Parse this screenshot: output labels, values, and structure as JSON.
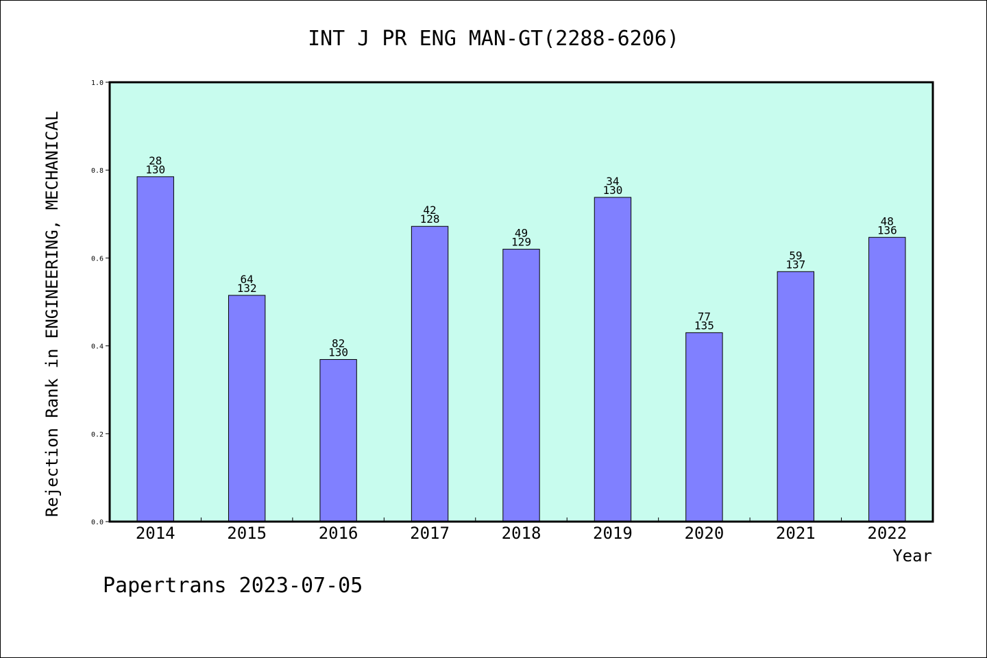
{
  "chart_data": {
    "type": "bar",
    "title": "INT J PR ENG MAN-GT(2288-6206)",
    "xlabel": "Year",
    "ylabel": "Rejection Rank in ENGINEERING, MECHANICAL",
    "ylim": [
      0,
      1.0
    ],
    "yticks": [
      "0.0",
      "0.2",
      "0.4",
      "0.6",
      "0.8",
      "1.0"
    ],
    "categories": [
      "2014",
      "2015",
      "2016",
      "2017",
      "2018",
      "2019",
      "2020",
      "2021",
      "2022"
    ],
    "values": [
      0.785,
      0.515,
      0.369,
      0.672,
      0.62,
      0.738,
      0.43,
      0.569,
      0.647
    ],
    "rank": [
      "28",
      "64",
      "82",
      "42",
      "49",
      "34",
      "77",
      "59",
      "48"
    ],
    "total": [
      "130",
      "132",
      "130",
      "128",
      "129",
      "130",
      "135",
      "137",
      "136"
    ],
    "grid": false,
    "colors": {
      "plot_background": "#c8fcee",
      "bar_fill": "#8080ff",
      "bar_stroke": "#000000"
    }
  },
  "footer": "Papertrans 2023-07-05"
}
